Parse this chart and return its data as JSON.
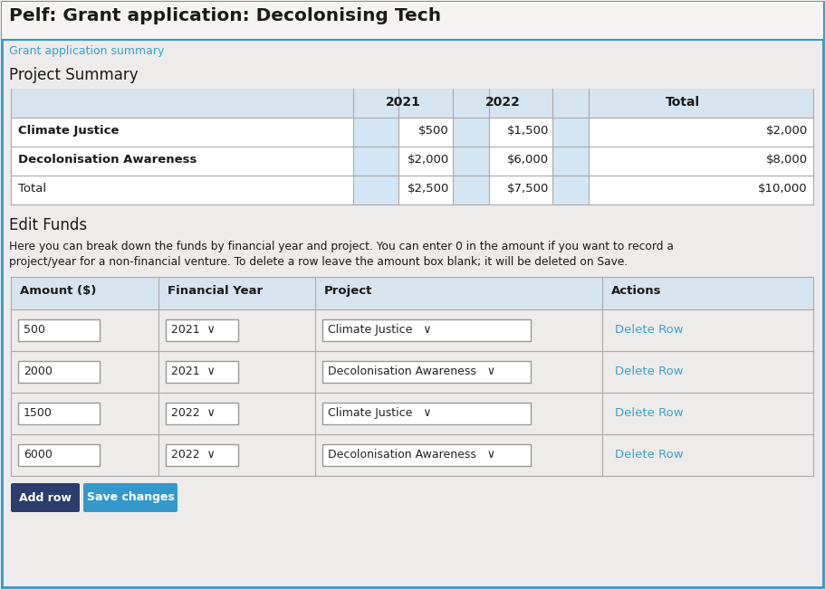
{
  "title": "Pelf: Grant application: Decolonising Tech",
  "link_text": "Grant application summary",
  "link_color": "#3ca0d0",
  "section1_title": "Project Summary",
  "section2_title": "Edit Funds",
  "description_line1": "Here you can break down the funds by financial year and project. You can enter 0 in the amount if you want to record a",
  "description_line2": "project/year for a non-financial venture. To delete a row leave the amount box blank; it will be deleted on Save.",
  "bg_color": "#eeecea",
  "border_color": "#3399cc",
  "summary_row_labels": [
    "Climate Justice",
    "Decolonisation Awareness",
    "Total"
  ],
  "row_2021": [
    "$500",
    "$2,000",
    "$2,500"
  ],
  "row_2022": [
    "$1,500",
    "$6,000",
    "$7,500"
  ],
  "row_total": [
    "$2,000",
    "$8,000",
    "$10,000"
  ],
  "row_bold": [
    true,
    true,
    false
  ],
  "table_header_bg": "#d6e4f0",
  "table_alt_bg": "#cfe0ee",
  "edit_table_headers": [
    "Amount ($)",
    "Financial Year",
    "Project",
    "Actions"
  ],
  "edit_amounts": [
    "500",
    "2000",
    "1500",
    "6000"
  ],
  "edit_years": [
    "2021",
    "2021",
    "2022",
    "2022"
  ],
  "edit_projects": [
    "Climate Justice",
    "Decolonisation Awareness",
    "Climate Justice",
    "Decolonisation Awareness"
  ],
  "btn_add_bg": "#2d3c6e",
  "btn_save_bg": "#3399cc",
  "btn_add_text": "Add row",
  "btn_save_text": "Save changes",
  "text_color": "#333333",
  "header_color": "#1a1a1a",
  "delete_color": "#3ca0d0"
}
